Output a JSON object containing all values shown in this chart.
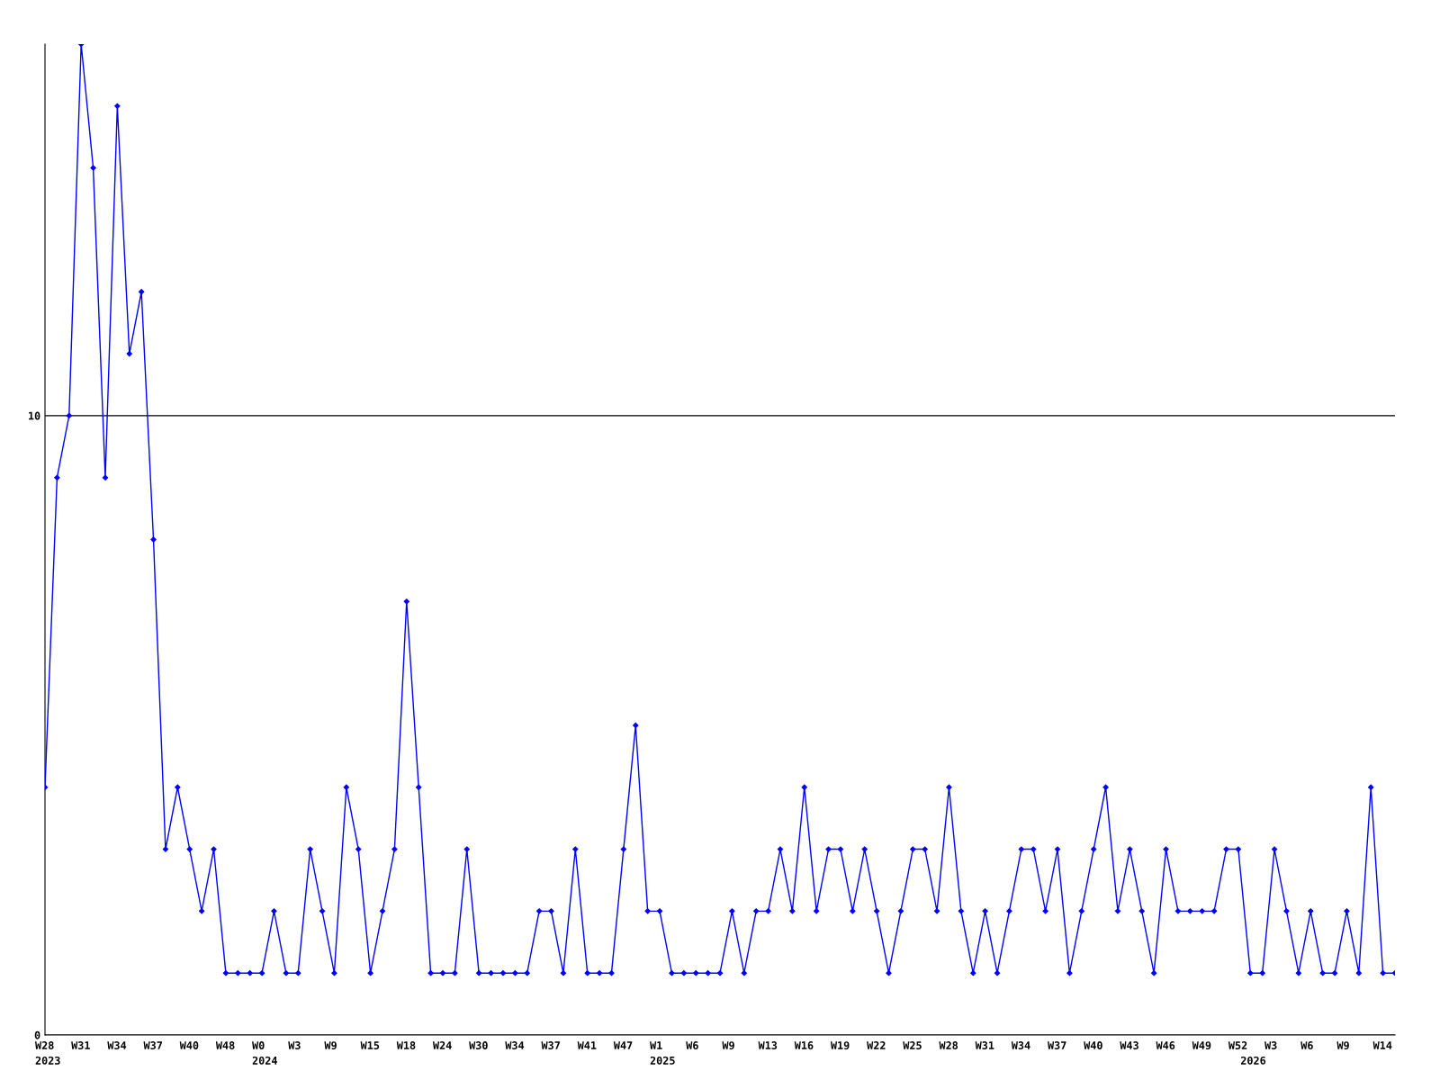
{
  "chart_data": {
    "type": "line",
    "categories": [
      "W28\n2023",
      null,
      null,
      "W31",
      null,
      null,
      "W34",
      null,
      null,
      "W37",
      null,
      null,
      "W40",
      null,
      null,
      "W48",
      null,
      null,
      "W0\n2024",
      null,
      null,
      "W3",
      null,
      null,
      "W9",
      null,
      null,
      "W15",
      null,
      null,
      "W18",
      null,
      null,
      "W24",
      null,
      null,
      "W30",
      null,
      null,
      "W34",
      null,
      null,
      "W37",
      null,
      null,
      "W41",
      null,
      null,
      "W47",
      null,
      null,
      "W1\n2025",
      null,
      null,
      "W6",
      null,
      null,
      "W9",
      null,
      null,
      "W13",
      null,
      null,
      "W16",
      null,
      null,
      "W19",
      null,
      null,
      "W22",
      null,
      null,
      "W25",
      null,
      null,
      "W28",
      null,
      null,
      "W31",
      null,
      null,
      "W34",
      null,
      null,
      "W37",
      null,
      null,
      "W40",
      null,
      null,
      "W43",
      null,
      null,
      "W46",
      null,
      null,
      "W49",
      null,
      null,
      "W52",
      "\n2026",
      null,
      "W3",
      null,
      null,
      "W6",
      null,
      null,
      "W9",
      null,
      null,
      "W14",
      null
    ],
    "series": [
      {
        "color": "#0000ff",
        "values": [
          4,
          9,
          10,
          16,
          14,
          9,
          15,
          11,
          12,
          8,
          3,
          4,
          3,
          2,
          3,
          1,
          1,
          1,
          1,
          2,
          1,
          1,
          3,
          2,
          1,
          4,
          3,
          1,
          2,
          3,
          7,
          4,
          1,
          1,
          1,
          3,
          1,
          1,
          1,
          1,
          1,
          2,
          2,
          1,
          3,
          1,
          1,
          1,
          3,
          5,
          2,
          2,
          1,
          1,
          1,
          1,
          1,
          2,
          1,
          2,
          2,
          3,
          2,
          4,
          2,
          3,
          3,
          2,
          3,
          2,
          1,
          2,
          3,
          3,
          2,
          4,
          2,
          1,
          2,
          1,
          2,
          3,
          3,
          2,
          3,
          1,
          2,
          3,
          4,
          2,
          3,
          2,
          1,
          3,
          2,
          2,
          2,
          2,
          3,
          3,
          1,
          1,
          3,
          2,
          1,
          2,
          1,
          1,
          2,
          1,
          4,
          1,
          1
        ]
      }
    ],
    "ylim": [
      0,
      16
    ],
    "yticks": [
      0,
      10
    ],
    "grid": "y",
    "marker": "diamond",
    "line_style": "solid"
  }
}
